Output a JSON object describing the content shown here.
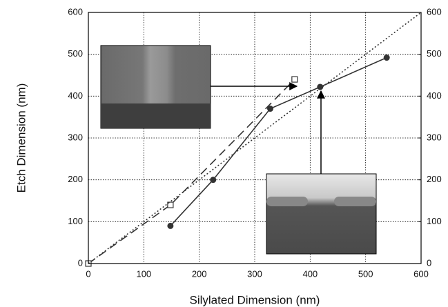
{
  "chart_data": {
    "type": "line",
    "xlabel": "Silylated Dimension (nm)",
    "ylabel": "Etch Dimension (nm)",
    "xlim": [
      0,
      600
    ],
    "xticks": [
      0,
      100,
      200,
      300,
      400,
      500,
      600
    ],
    "ylim": [
      0,
      600
    ],
    "yticks": [
      0,
      100,
      200,
      300,
      400,
      500,
      600
    ],
    "y2lim": [
      0,
      600
    ],
    "y2ticks": [
      0,
      100,
      200,
      300,
      400,
      500,
      600
    ],
    "grid": true,
    "series": [
      {
        "color": "#333333",
        "marker": "circle",
        "dash": "solid",
        "x": [
          148,
          225,
          328,
          418,
          538
        ],
        "values": [
          90,
          200,
          370,
          422,
          492
        ]
      },
      {
        "color": "#333333",
        "marker": "square",
        "dash": "dashed",
        "x": [
          0,
          148,
          372
        ],
        "values": [
          0,
          140,
          440
        ]
      },
      {
        "color": "#333333",
        "marker": "none",
        "dash": "dotted",
        "x": [
          0,
          600
        ],
        "values": [
          0,
          600
        ]
      }
    ]
  }
}
